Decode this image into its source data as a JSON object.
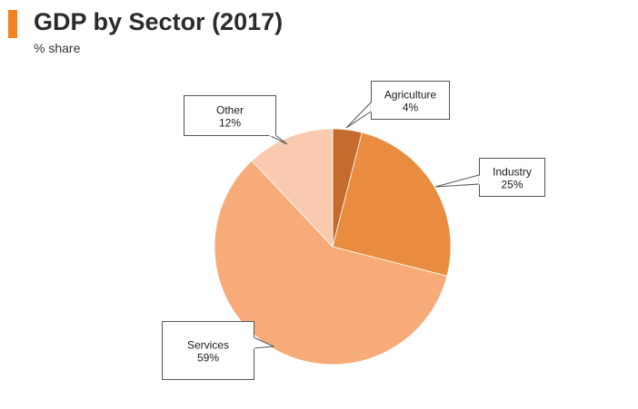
{
  "header": {
    "title": "GDP by Sector (2017)",
    "subtitle": "% share"
  },
  "colors": {
    "accent": "#f58220",
    "agriculture": "#c56b2e",
    "industry": "#e98c3f",
    "services": "#f7ab79",
    "other": "#f9cab0"
  },
  "chart_data": {
    "type": "pie",
    "title": "GDP by Sector (2017)",
    "subtitle": "% share",
    "unit": "%",
    "start_angle_deg": 0,
    "direction": "clockwise",
    "slices": [
      {
        "label": "Agriculture",
        "value": 4,
        "value_label": "4%",
        "color": "#c56b2e"
      },
      {
        "label": "Industry",
        "value": 25,
        "value_label": "25%",
        "color": "#e98c3f"
      },
      {
        "label": "Services",
        "value": 59,
        "value_label": "59%",
        "color": "#f7ab79"
      },
      {
        "label": "Other",
        "value": 12,
        "value_label": "12%",
        "color": "#f9cab0"
      }
    ],
    "labels_style": "callout-boxes",
    "legend": "none"
  }
}
